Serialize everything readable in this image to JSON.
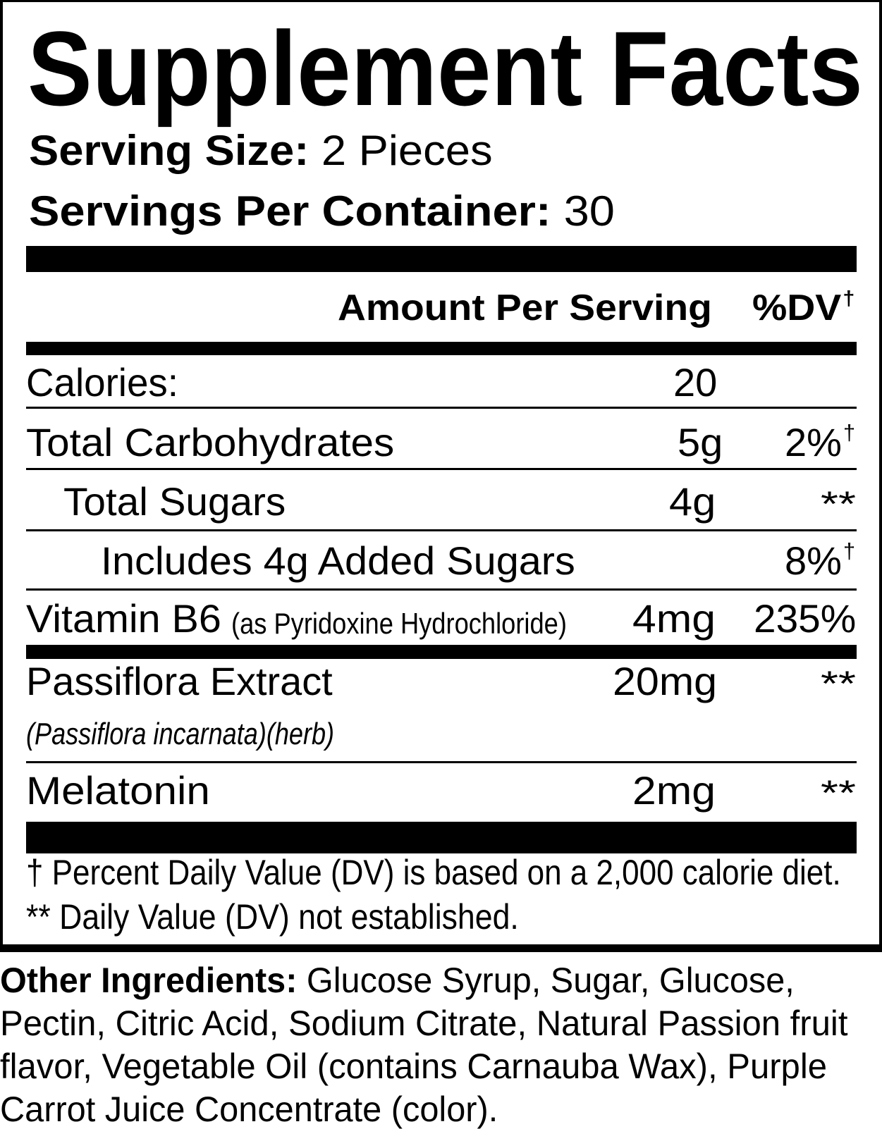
{
  "title": "Supplement Facts",
  "serving_size": {
    "label": "Serving Size:",
    "value": "2 Pieces"
  },
  "servings_per_container": {
    "label": "Servings Per Container:",
    "value": "30"
  },
  "header": {
    "amount": "Amount Per Serving",
    "dv": "%DV",
    "dv_mark": "†"
  },
  "rows": [
    {
      "name": "Calories:",
      "amount": "20",
      "dv": "",
      "mark": ""
    },
    {
      "name": "Total Carbohydrates",
      "amount": "5g",
      "dv": "2%",
      "mark": "†"
    },
    {
      "name": "Total Sugars",
      "amount": "4g",
      "dv": "**",
      "mark": ""
    },
    {
      "name": "Includes 4g Added Sugars",
      "amount": "",
      "dv": "8%",
      "mark": "†"
    },
    {
      "name": "Vitamin B6",
      "detail": "(as Pyridoxine Hydrochloride)",
      "amount": "4mg",
      "dv": "235%",
      "mark": ""
    },
    {
      "name": "Passiflora Extract",
      "detail": "(Passiflora incarnata)(herb)",
      "amount": "20mg",
      "dv": "**",
      "mark": ""
    },
    {
      "name": "Melatonin",
      "amount": "2mg",
      "dv": "**",
      "mark": ""
    }
  ],
  "footnotes": [
    "† Percent Daily Value (DV) is based on a 2,000 calorie diet.",
    "** Daily Value (DV) not established."
  ],
  "other_ingredients": {
    "label": "Other Ingredients:",
    "lines": [
      " Glucose Syrup, Sugar, Glucose,",
      "Pectin, Citric Acid, Sodium Citrate, Natural Passion fruit",
      "flavor, Vegetable Oil (contains Carnauba Wax), Purple",
      "Carrot Juice Concentrate (color)."
    ]
  }
}
